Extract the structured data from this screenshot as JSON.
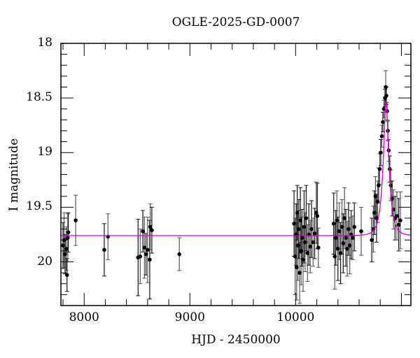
{
  "chart_data": {
    "type": "scatter",
    "title": "OGLE-2025-GD-0007",
    "xlabel": "HJD - 2450000",
    "ylabel": "I magnitude",
    "xlim": [
      7780,
      11090
    ],
    "ylim": [
      20.4,
      18.0
    ],
    "y_inverted": true,
    "grid": false,
    "legend": null,
    "xticks": [
      8000,
      9000,
      10000
    ],
    "xtick_labels": [
      "8000",
      "9000",
      "10000"
    ],
    "x_minor_step": 200,
    "yticks": [
      18,
      18.5,
      19,
      19.5,
      20
    ],
    "ytick_labels": [
      "18",
      "18.5",
      "19",
      "19.5",
      "20"
    ],
    "y_minor_step": 0.1,
    "colors": {
      "data": "#000000",
      "errorbar": "#333333",
      "model": "#cc00cc",
      "frame": "#000000"
    },
    "series": [
      {
        "name": "OGLE I-band photometry",
        "kind": "errorbar",
        "points": [
          {
            "x": 7800,
            "y": 19.85,
            "err": 0.21
          },
          {
            "x": 7810,
            "y": 19.8,
            "err": 0.25
          },
          {
            "x": 7820,
            "y": 19.93,
            "err": 0.18
          },
          {
            "x": 7830,
            "y": 19.88,
            "err": 0.2
          },
          {
            "x": 7838,
            "y": 20.12,
            "err": 0.15
          },
          {
            "x": 7845,
            "y": 19.78,
            "err": 0.22
          },
          {
            "x": 7850,
            "y": 19.73,
            "err": 0.18
          },
          {
            "x": 7920,
            "y": 19.62,
            "err": 0.23
          },
          {
            "x": 8190,
            "y": 19.89,
            "err": 0.24
          },
          {
            "x": 8225,
            "y": 19.77,
            "err": 0.21
          },
          {
            "x": 8510,
            "y": 19.96,
            "err": 0.35
          },
          {
            "x": 8530,
            "y": 19.95,
            "err": 0.25
          },
          {
            "x": 8555,
            "y": 19.72,
            "err": 0.19
          },
          {
            "x": 8570,
            "y": 19.87,
            "err": 0.28
          },
          {
            "x": 8585,
            "y": 19.93,
            "err": 0.19
          },
          {
            "x": 8600,
            "y": 19.89,
            "err": 0.3
          },
          {
            "x": 8620,
            "y": 19.98,
            "err": 0.36
          },
          {
            "x": 8625,
            "y": 19.68,
            "err": 0.21
          },
          {
            "x": 8640,
            "y": 19.71,
            "err": 0.21
          },
          {
            "x": 8900,
            "y": 19.93,
            "err": 0.15
          },
          {
            "x": 9985,
            "y": 19.65,
            "err": 0.3
          },
          {
            "x": 9995,
            "y": 19.95,
            "err": 0.35
          },
          {
            "x": 10005,
            "y": 19.75,
            "err": 0.28
          },
          {
            "x": 10010,
            "y": 20.05,
            "err": 0.3
          },
          {
            "x": 10015,
            "y": 19.55,
            "err": 0.25
          },
          {
            "x": 10022,
            "y": 19.85,
            "err": 0.32
          },
          {
            "x": 10030,
            "y": 19.7,
            "err": 0.27
          },
          {
            "x": 10038,
            "y": 20.1,
            "err": 0.28
          },
          {
            "x": 10045,
            "y": 19.62,
            "err": 0.3
          },
          {
            "x": 10052,
            "y": 19.9,
            "err": 0.31
          },
          {
            "x": 10060,
            "y": 19.78,
            "err": 0.26
          },
          {
            "x": 10070,
            "y": 19.98,
            "err": 0.29
          },
          {
            "x": 10080,
            "y": 19.68,
            "err": 0.33
          },
          {
            "x": 10090,
            "y": 19.82,
            "err": 0.27
          },
          {
            "x": 10100,
            "y": 19.6,
            "err": 0.3
          },
          {
            "x": 10112,
            "y": 19.92,
            "err": 0.26
          },
          {
            "x": 10125,
            "y": 19.75,
            "err": 0.28
          },
          {
            "x": 10138,
            "y": 19.86,
            "err": 0.24
          },
          {
            "x": 10150,
            "y": 19.7,
            "err": 0.26
          },
          {
            "x": 10165,
            "y": 19.82,
            "err": 0.22
          },
          {
            "x": 10180,
            "y": 19.74,
            "err": 0.23
          },
          {
            "x": 10195,
            "y": 19.55,
            "err": 0.28
          },
          {
            "x": 10205,
            "y": 19.58,
            "err": 0.3
          },
          {
            "x": 10215,
            "y": 19.87,
            "err": 0.18
          },
          {
            "x": 10360,
            "y": 19.65,
            "err": 0.28
          },
          {
            "x": 10370,
            "y": 19.95,
            "err": 0.3
          },
          {
            "x": 10380,
            "y": 19.78,
            "err": 0.25
          },
          {
            "x": 10390,
            "y": 19.62,
            "err": 0.27
          },
          {
            "x": 10400,
            "y": 19.88,
            "err": 0.29
          },
          {
            "x": 10412,
            "y": 19.72,
            "err": 0.26
          },
          {
            "x": 10425,
            "y": 19.92,
            "err": 0.28
          },
          {
            "x": 10438,
            "y": 19.68,
            "err": 0.25
          },
          {
            "x": 10450,
            "y": 19.83,
            "err": 0.27
          },
          {
            "x": 10462,
            "y": 19.6,
            "err": 0.28
          },
          {
            "x": 10475,
            "y": 19.78,
            "err": 0.26
          },
          {
            "x": 10488,
            "y": 19.88,
            "err": 0.25
          },
          {
            "x": 10500,
            "y": 19.7,
            "err": 0.24
          },
          {
            "x": 10512,
            "y": 19.85,
            "err": 0.26
          },
          {
            "x": 10525,
            "y": 19.75,
            "err": 0.22
          },
          {
            "x": 10540,
            "y": 19.78,
            "err": 0.2
          },
          {
            "x": 10555,
            "y": 19.68,
            "err": 0.22
          },
          {
            "x": 10620,
            "y": 19.72,
            "err": 0.22
          },
          {
            "x": 10720,
            "y": 19.8,
            "err": 0.2
          },
          {
            "x": 10735,
            "y": 19.7,
            "err": 0.21
          },
          {
            "x": 10745,
            "y": 19.55,
            "err": 0.2
          },
          {
            "x": 10755,
            "y": 19.4,
            "err": 0.18
          },
          {
            "x": 10765,
            "y": 19.6,
            "err": 0.22
          },
          {
            "x": 10775,
            "y": 19.45,
            "err": 0.19
          },
          {
            "x": 10785,
            "y": 19.3,
            "err": 0.16
          },
          {
            "x": 10795,
            "y": 19.15,
            "err": 0.14
          },
          {
            "x": 10805,
            "y": 19.0,
            "err": 0.12
          },
          {
            "x": 10815,
            "y": 18.85,
            "err": 0.1
          },
          {
            "x": 10825,
            "y": 18.72,
            "err": 0.09
          },
          {
            "x": 10835,
            "y": 18.6,
            "err": 0.08
          },
          {
            "x": 10845,
            "y": 18.5,
            "err": 0.08
          },
          {
            "x": 10852,
            "y": 18.4,
            "err": 0.15
          },
          {
            "x": 10858,
            "y": 18.48,
            "err": 0.08
          },
          {
            "x": 10865,
            "y": 18.62,
            "err": 0.08
          },
          {
            "x": 10872,
            "y": 18.8,
            "err": 0.09
          },
          {
            "x": 10880,
            "y": 18.98,
            "err": 0.1
          },
          {
            "x": 10890,
            "y": 19.15,
            "err": 0.12
          },
          {
            "x": 10900,
            "y": 19.3,
            "err": 0.14
          },
          {
            "x": 10912,
            "y": 19.42,
            "err": 0.16
          },
          {
            "x": 10925,
            "y": 19.52,
            "err": 0.18
          },
          {
            "x": 10940,
            "y": 19.6,
            "err": 0.2
          },
          {
            "x": 10958,
            "y": 19.58,
            "err": 0.22
          },
          {
            "x": 10975,
            "y": 19.66,
            "err": 0.24
          },
          {
            "x": 10990,
            "y": 19.62,
            "err": 0.26
          }
        ]
      },
      {
        "name": "PSPL model fit",
        "kind": "line",
        "baseline_mag": 19.76,
        "peak_x": 10855,
        "peak_mag": 18.52,
        "tE_days": 55,
        "u0": 0.31
      }
    ]
  }
}
